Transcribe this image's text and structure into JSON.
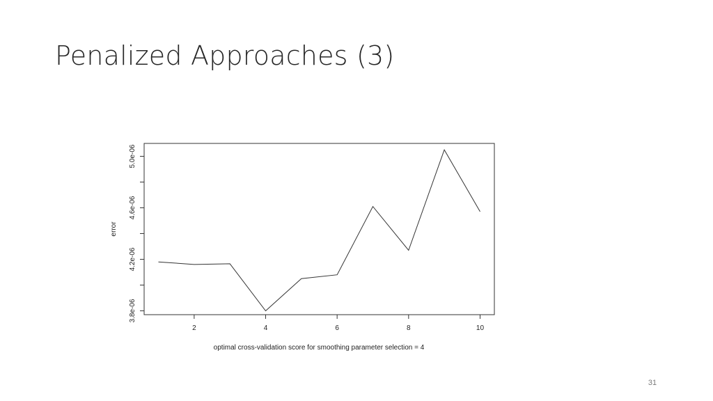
{
  "slide": {
    "title": "Penalized Approaches (3)",
    "page_number": "31"
  },
  "chart_data": {
    "type": "line",
    "xlabel": "optimal cross-validation score for smoothing parameter selection = 4",
    "ylabel": "error",
    "x": [
      1,
      2,
      3,
      4,
      5,
      6,
      7,
      8,
      9,
      10
    ],
    "series": [
      {
        "values": [
          4.18e-06,
          4.16e-06,
          4.165e-06,
          3.8e-06,
          4.05e-06,
          4.08e-06,
          4.61e-06,
          4.27e-06,
          5.05e-06,
          4.57e-06
        ]
      }
    ],
    "xlim": [
      0.6,
      10.4
    ],
    "ylim": [
      3.77e-06,
      5.1e-06
    ],
    "x_ticks": [
      2,
      4,
      6,
      8,
      10
    ],
    "x_tick_labels": [
      "2",
      "4",
      "6",
      "8",
      "10"
    ],
    "y_ticks": [
      3.8e-06,
      4e-06,
      4.2e-06,
      4.4e-06,
      4.6e-06,
      4.8e-06,
      5e-06
    ],
    "y_tick_labels": [
      "3.8e-06",
      "",
      "4.2e-06",
      "",
      "4.6e-06",
      "",
      "5.0e-06"
    ],
    "line_color": "#333333",
    "grid": false
  }
}
